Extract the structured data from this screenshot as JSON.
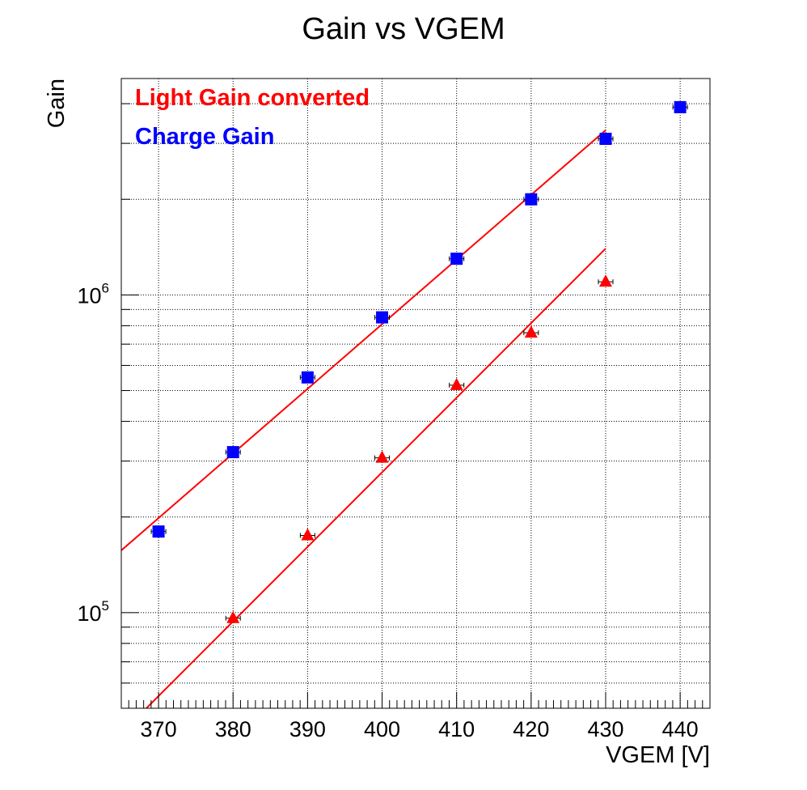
{
  "chart_data": {
    "type": "scatter",
    "title": "Gain vs VGEM",
    "xlabel": "VGEM [V]",
    "ylabel": "Gain",
    "xlim": [
      365,
      444
    ],
    "ylim": [
      50000,
      4800000
    ],
    "yscale": "log",
    "grid": true,
    "legend_position": "top-left",
    "x_ticks": [
      "370",
      "380",
      "390",
      "400",
      "410",
      "420",
      "430",
      "440"
    ],
    "y_ticks": [
      {
        "value": 100000,
        "base": "10",
        "exp": "5"
      },
      {
        "value": 1000000,
        "base": "10",
        "exp": "6"
      }
    ],
    "series": [
      {
        "name": "Light Gain converted",
        "color": "#ff0000",
        "marker": "triangle",
        "x": [
          380,
          390,
          400,
          410,
          420,
          430
        ],
        "y": [
          96000,
          175000,
          307000,
          520000,
          760000,
          1100000
        ],
        "fit": {
          "x": [
            366,
            430
          ],
          "y": [
            44000,
            1400000
          ]
        }
      },
      {
        "name": "Charge Gain",
        "color": "#0000ff",
        "marker": "square",
        "x": [
          370,
          380,
          390,
          400,
          410,
          420,
          430,
          440
        ],
        "y": [
          180000,
          320000,
          550000,
          850000,
          1300000,
          2000000,
          3100000,
          3900000
        ],
        "fit": {
          "x": [
            365,
            430
          ],
          "y": [
            157000,
            3300000
          ]
        }
      }
    ]
  }
}
